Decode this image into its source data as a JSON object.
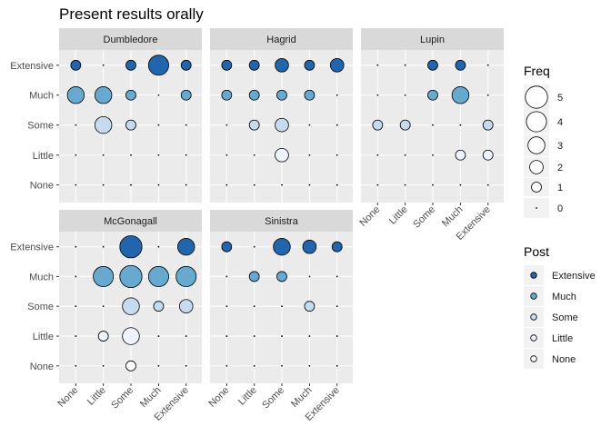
{
  "chart_data": {
    "type": "scatter",
    "title": "Present results orally",
    "xlabel": "",
    "ylabel": "",
    "levels": [
      "None",
      "Little",
      "Some",
      "Much",
      "Extensive"
    ],
    "panels": [
      {
        "name": "Dumbledore",
        "points": [
          {
            "x": "None",
            "y": "Extensive",
            "freq": 1
          },
          {
            "x": "Some",
            "y": "Extensive",
            "freq": 1
          },
          {
            "x": "Much",
            "y": "Extensive",
            "freq": 4
          },
          {
            "x": "Extensive",
            "y": "Extensive",
            "freq": 1
          },
          {
            "x": "None",
            "y": "Much",
            "freq": 3
          },
          {
            "x": "Little",
            "y": "Much",
            "freq": 3
          },
          {
            "x": "Some",
            "y": "Much",
            "freq": 1
          },
          {
            "x": "Extensive",
            "y": "Much",
            "freq": 1
          },
          {
            "x": "Little",
            "y": "Some",
            "freq": 3
          },
          {
            "x": "Some",
            "y": "Some",
            "freq": 1
          }
        ]
      },
      {
        "name": "Hagrid",
        "points": [
          {
            "x": "None",
            "y": "Extensive",
            "freq": 1
          },
          {
            "x": "Little",
            "y": "Extensive",
            "freq": 1
          },
          {
            "x": "Some",
            "y": "Extensive",
            "freq": 2
          },
          {
            "x": "Much",
            "y": "Extensive",
            "freq": 1
          },
          {
            "x": "Extensive",
            "y": "Extensive",
            "freq": 2
          },
          {
            "x": "None",
            "y": "Much",
            "freq": 1
          },
          {
            "x": "Little",
            "y": "Much",
            "freq": 1
          },
          {
            "x": "Some",
            "y": "Much",
            "freq": 1
          },
          {
            "x": "Much",
            "y": "Much",
            "freq": 1
          },
          {
            "x": "Little",
            "y": "Some",
            "freq": 1
          },
          {
            "x": "Some",
            "y": "Some",
            "freq": 2
          },
          {
            "x": "Some",
            "y": "Little",
            "freq": 2
          }
        ]
      },
      {
        "name": "Lupin",
        "points": [
          {
            "x": "Some",
            "y": "Extensive",
            "freq": 1
          },
          {
            "x": "Much",
            "y": "Extensive",
            "freq": 1
          },
          {
            "x": "Some",
            "y": "Much",
            "freq": 1
          },
          {
            "x": "Much",
            "y": "Much",
            "freq": 3
          },
          {
            "x": "None",
            "y": "Some",
            "freq": 1
          },
          {
            "x": "Little",
            "y": "Some",
            "freq": 1
          },
          {
            "x": "Extensive",
            "y": "Some",
            "freq": 1
          },
          {
            "x": "Much",
            "y": "Little",
            "freq": 1
          },
          {
            "x": "Extensive",
            "y": "Little",
            "freq": 1
          }
        ]
      },
      {
        "name": "McGonagall",
        "points": [
          {
            "x": "Some",
            "y": "Extensive",
            "freq": 5
          },
          {
            "x": "Extensive",
            "y": "Extensive",
            "freq": 3
          },
          {
            "x": "Little",
            "y": "Much",
            "freq": 4
          },
          {
            "x": "Some",
            "y": "Much",
            "freq": 5
          },
          {
            "x": "Much",
            "y": "Much",
            "freq": 4
          },
          {
            "x": "Extensive",
            "y": "Much",
            "freq": 4
          },
          {
            "x": "Some",
            "y": "Some",
            "freq": 3
          },
          {
            "x": "Much",
            "y": "Some",
            "freq": 1
          },
          {
            "x": "Extensive",
            "y": "Some",
            "freq": 2
          },
          {
            "x": "Little",
            "y": "Little",
            "freq": 1
          },
          {
            "x": "Some",
            "y": "Little",
            "freq": 3
          },
          {
            "x": "Some",
            "y": "None",
            "freq": 1
          }
        ]
      },
      {
        "name": "Sinistra",
        "points": [
          {
            "x": "None",
            "y": "Extensive",
            "freq": 1
          },
          {
            "x": "Some",
            "y": "Extensive",
            "freq": 3
          },
          {
            "x": "Much",
            "y": "Extensive",
            "freq": 2
          },
          {
            "x": "Extensive",
            "y": "Extensive",
            "freq": 1
          },
          {
            "x": "Little",
            "y": "Much",
            "freq": 1
          },
          {
            "x": "Some",
            "y": "Much",
            "freq": 1
          },
          {
            "x": "Much",
            "y": "Some",
            "freq": 1
          }
        ]
      }
    ],
    "legend_size": {
      "title": "Freq",
      "values": [
        5,
        4,
        3,
        2,
        1,
        0
      ]
    },
    "legend_color": {
      "title": "Post",
      "values": [
        "Extensive",
        "Much",
        "Some",
        "Little",
        "None"
      ]
    },
    "colors": {
      "Extensive": "#2166ac",
      "Much": "#67a9cf",
      "Some": "#c6dbef",
      "Little": "#eff3ff",
      "None": "#ffffff"
    },
    "panel_background": "#ebebeb",
    "strip_background": "#d9d9d9",
    "grid": true,
    "legend_position": "right"
  }
}
